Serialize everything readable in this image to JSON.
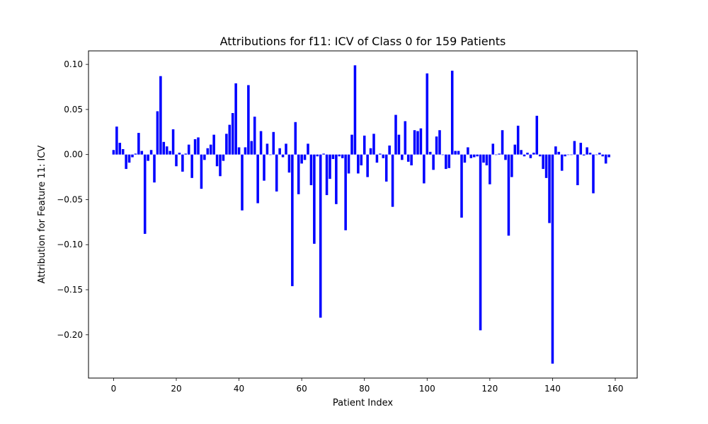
{
  "chart_data": {
    "type": "bar",
    "title": "Attributions for f11: ICV of Class 0 for 159 Patients",
    "xlabel": "Patient Index",
    "ylabel": "Attribution for Feature 11: ICV",
    "xlim": [
      -8,
      167
    ],
    "ylim": [
      -0.248,
      0.115
    ],
    "xticks": [
      0,
      20,
      40,
      60,
      80,
      100,
      120,
      140,
      160
    ],
    "xtick_labels": [
      "0",
      "20",
      "40",
      "60",
      "80",
      "100",
      "120",
      "140",
      "160"
    ],
    "yticks": [
      0.1,
      0.05,
      0.0,
      -0.05,
      -0.1,
      -0.15,
      -0.2
    ],
    "ytick_labels": [
      "0.10",
      "0.05",
      "0.00",
      "−0.05",
      "−0.10",
      "−0.15",
      "−0.20"
    ],
    "bar_color": "#0000ff",
    "grid": false,
    "x": [
      0,
      1,
      2,
      3,
      4,
      5,
      6,
      7,
      8,
      9,
      10,
      11,
      12,
      13,
      14,
      15,
      16,
      17,
      18,
      19,
      20,
      21,
      22,
      23,
      24,
      25,
      26,
      27,
      28,
      29,
      30,
      31,
      32,
      33,
      34,
      35,
      36,
      37,
      38,
      39,
      40,
      41,
      42,
      43,
      44,
      45,
      46,
      47,
      48,
      49,
      50,
      51,
      52,
      53,
      54,
      55,
      56,
      57,
      58,
      59,
      60,
      61,
      62,
      63,
      64,
      65,
      66,
      67,
      68,
      69,
      70,
      71,
      72,
      73,
      74,
      75,
      76,
      77,
      78,
      79,
      80,
      81,
      82,
      83,
      84,
      85,
      86,
      87,
      88,
      89,
      90,
      91,
      92,
      93,
      94,
      95,
      96,
      97,
      98,
      99,
      100,
      101,
      102,
      103,
      104,
      105,
      106,
      107,
      108,
      109,
      110,
      111,
      112,
      113,
      114,
      115,
      116,
      117,
      118,
      119,
      120,
      121,
      122,
      123,
      124,
      125,
      126,
      127,
      128,
      129,
      130,
      131,
      132,
      133,
      134,
      135,
      136,
      137,
      138,
      139,
      140,
      141,
      142,
      143,
      144,
      145,
      146,
      147,
      148,
      149,
      150,
      151,
      152,
      153,
      154,
      155,
      156,
      157,
      158
    ],
    "values": [
      0.005,
      0.031,
      0.013,
      0.006,
      -0.016,
      -0.009,
      -0.003,
      0.001,
      0.024,
      0.004,
      -0.088,
      -0.007,
      0.005,
      -0.031,
      0.048,
      0.087,
      0.014,
      0.009,
      0.004,
      0.028,
      -0.013,
      0.002,
      -0.019,
      0.001,
      0.011,
      -0.026,
      0.017,
      0.019,
      -0.038,
      -0.006,
      0.007,
      0.011,
      0.022,
      -0.013,
      -0.024,
      -0.007,
      0.023,
      0.033,
      0.046,
      0.079,
      0.008,
      -0.062,
      0.008,
      0.077,
      0.015,
      0.042,
      -0.054,
      0.026,
      -0.029,
      0.012,
      0.0,
      0.025,
      -0.041,
      0.007,
      -0.003,
      0.012,
      -0.02,
      -0.146,
      0.036,
      -0.044,
      -0.01,
      -0.006,
      0.012,
      -0.034,
      -0.099,
      -0.002,
      -0.181,
      0.001,
      -0.045,
      -0.027,
      -0.005,
      -0.055,
      -0.002,
      -0.004,
      -0.084,
      -0.021,
      0.022,
      0.099,
      -0.021,
      -0.012,
      0.021,
      -0.025,
      0.007,
      0.023,
      -0.009,
      0.001,
      -0.004,
      -0.03,
      0.01,
      -0.058,
      0.044,
      0.022,
      -0.006,
      0.037,
      -0.008,
      -0.012,
      0.027,
      0.026,
      0.029,
      -0.032,
      0.09,
      0.003,
      -0.017,
      0.02,
      0.027,
      0.0,
      -0.016,
      -0.015,
      0.093,
      0.004,
      0.004,
      -0.07,
      -0.009,
      0.008,
      -0.004,
      -0.003,
      -0.002,
      -0.195,
      -0.009,
      -0.012,
      -0.033,
      0.012,
      0.0,
      0.001,
      0.027,
      -0.006,
      -0.09,
      -0.025,
      0.011,
      0.032,
      0.005,
      -0.002,
      0.002,
      -0.004,
      0.002,
      0.043,
      -0.002,
      -0.016,
      -0.026,
      -0.076,
      -0.232,
      0.009,
      0.003,
      -0.018,
      -0.002,
      0.0,
      0.0,
      0.015,
      -0.034,
      0.013,
      -0.001,
      0.008,
      0.002,
      -0.043,
      0.0,
      0.002,
      -0.002,
      -0.01,
      -0.003
    ]
  }
}
